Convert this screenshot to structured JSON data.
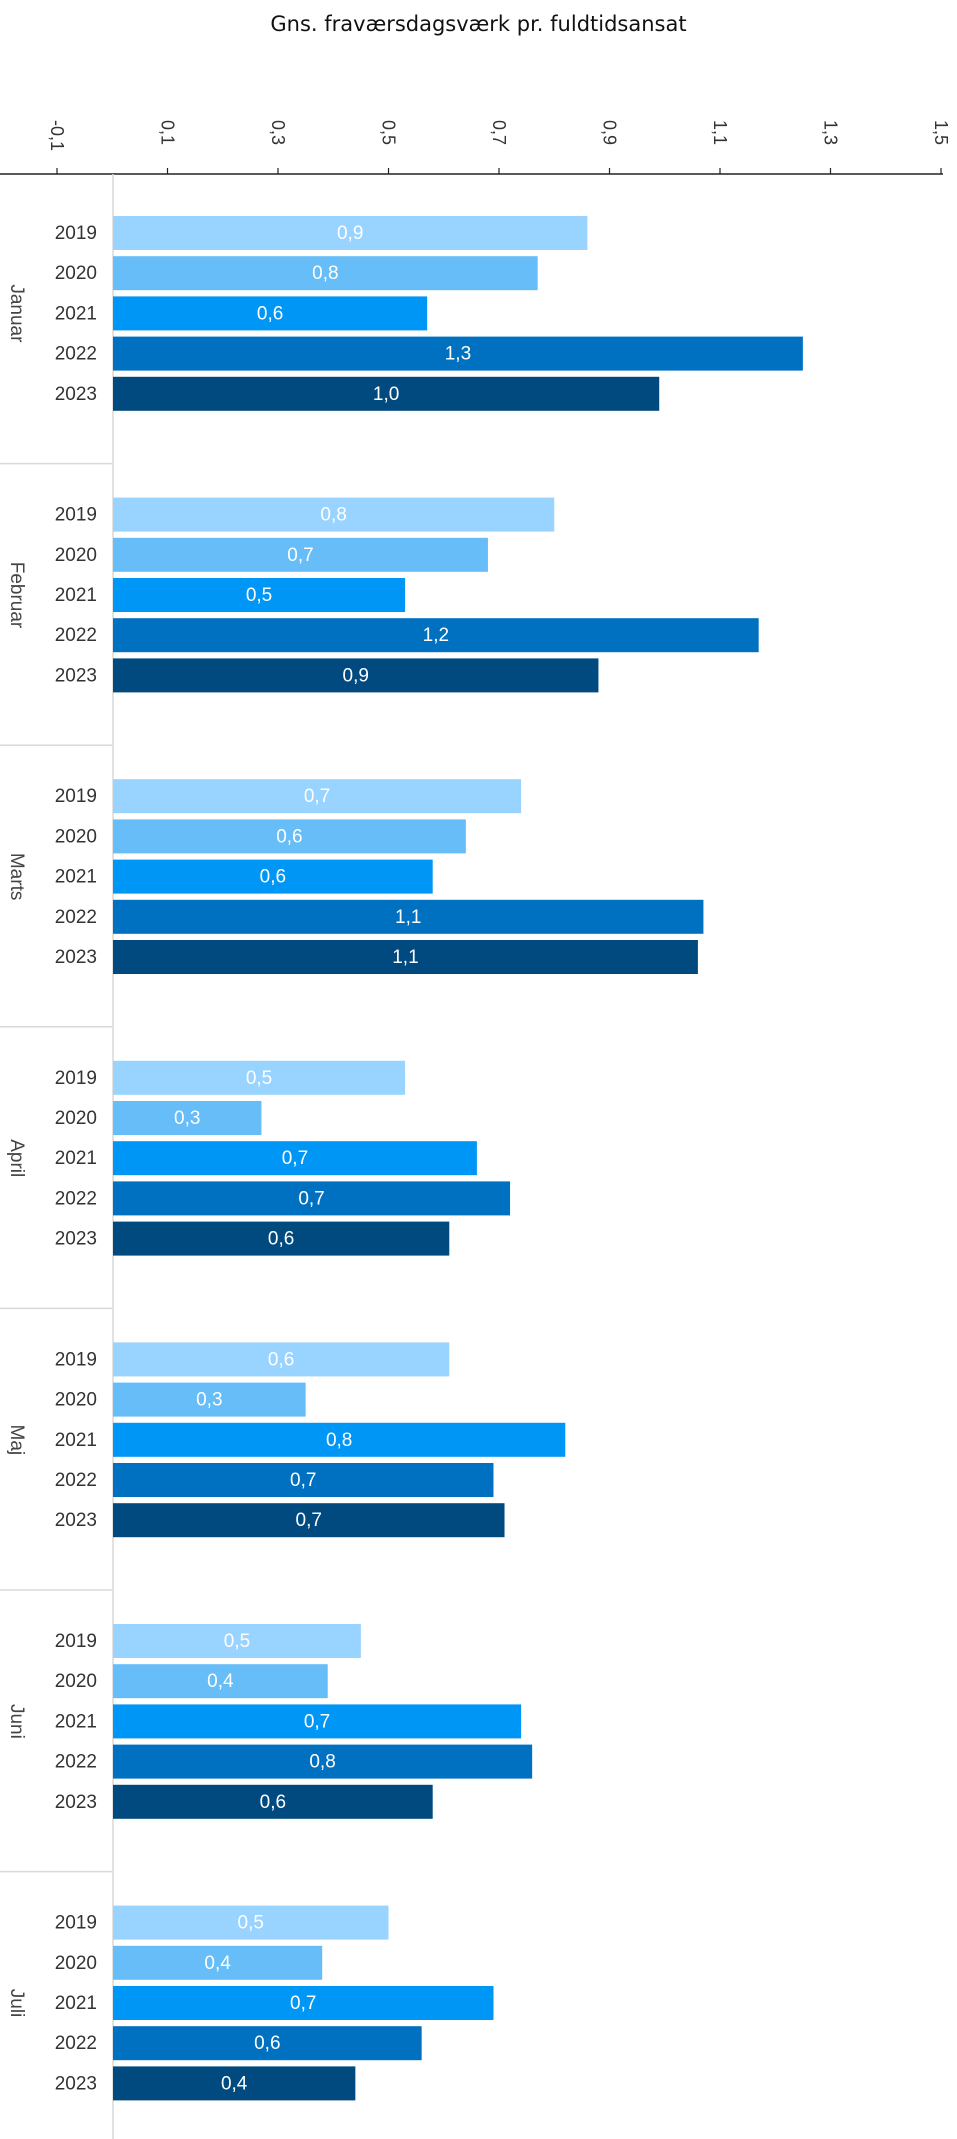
{
  "chart_data": {
    "type": "bar",
    "orientation": "horizontal",
    "title": "Gns. fraværsdagsværk pr. fuldtidsansat",
    "xlim": [
      -0.1,
      1.5
    ],
    "x_ticks": [
      "-0,1",
      "0,1",
      "0,3",
      "0,5",
      "0,7",
      "0,9",
      "1,1",
      "1,3",
      "1,5"
    ],
    "x_tick_values": [
      -0.1,
      0.1,
      0.3,
      0.5,
      0.7,
      0.9,
      1.1,
      1.3,
      1.5
    ],
    "axis_position": "top",
    "grid": false,
    "legend": "none",
    "series_years": [
      "2019",
      "2020",
      "2021",
      "2022",
      "2023"
    ],
    "colors": {
      "2019": "#99d3ff",
      "2020": "#66bdf7",
      "2021": "#0096f5",
      "2022": "#0070c0",
      "2023": "#004a80"
    },
    "groups": [
      {
        "month": "Januar",
        "values": [
          0.86,
          0.77,
          0.57,
          1.25,
          0.99
        ],
        "labels": [
          "0,9",
          "0,8",
          "0,6",
          "1,3",
          "1,0"
        ]
      },
      {
        "month": "Februar",
        "values": [
          0.8,
          0.68,
          0.53,
          1.17,
          0.88
        ],
        "labels": [
          "0,8",
          "0,7",
          "0,5",
          "1,2",
          "0,9"
        ]
      },
      {
        "month": "Marts",
        "values": [
          0.74,
          0.64,
          0.58,
          1.07,
          1.06
        ],
        "labels": [
          "0,7",
          "0,6",
          "0,6",
          "1,1",
          "1,1"
        ]
      },
      {
        "month": "April",
        "values": [
          0.53,
          0.27,
          0.66,
          0.72,
          0.61
        ],
        "labels": [
          "0,5",
          "0,3",
          "0,7",
          "0,7",
          "0,6"
        ]
      },
      {
        "month": "Maj",
        "values": [
          0.61,
          0.35,
          0.82,
          0.69,
          0.71
        ],
        "labels": [
          "0,6",
          "0,3",
          "0,8",
          "0,7",
          "0,7"
        ]
      },
      {
        "month": "Juni",
        "values": [
          0.45,
          0.39,
          0.74,
          0.76,
          0.58
        ],
        "labels": [
          "0,5",
          "0,4",
          "0,7",
          "0,8",
          "0,6"
        ]
      },
      {
        "month": "Juli",
        "values": [
          0.5,
          0.38,
          0.69,
          0.56,
          0.44
        ],
        "labels": [
          "0,5",
          "0,4",
          "0,7",
          "0,6",
          "0,4"
        ]
      }
    ]
  }
}
